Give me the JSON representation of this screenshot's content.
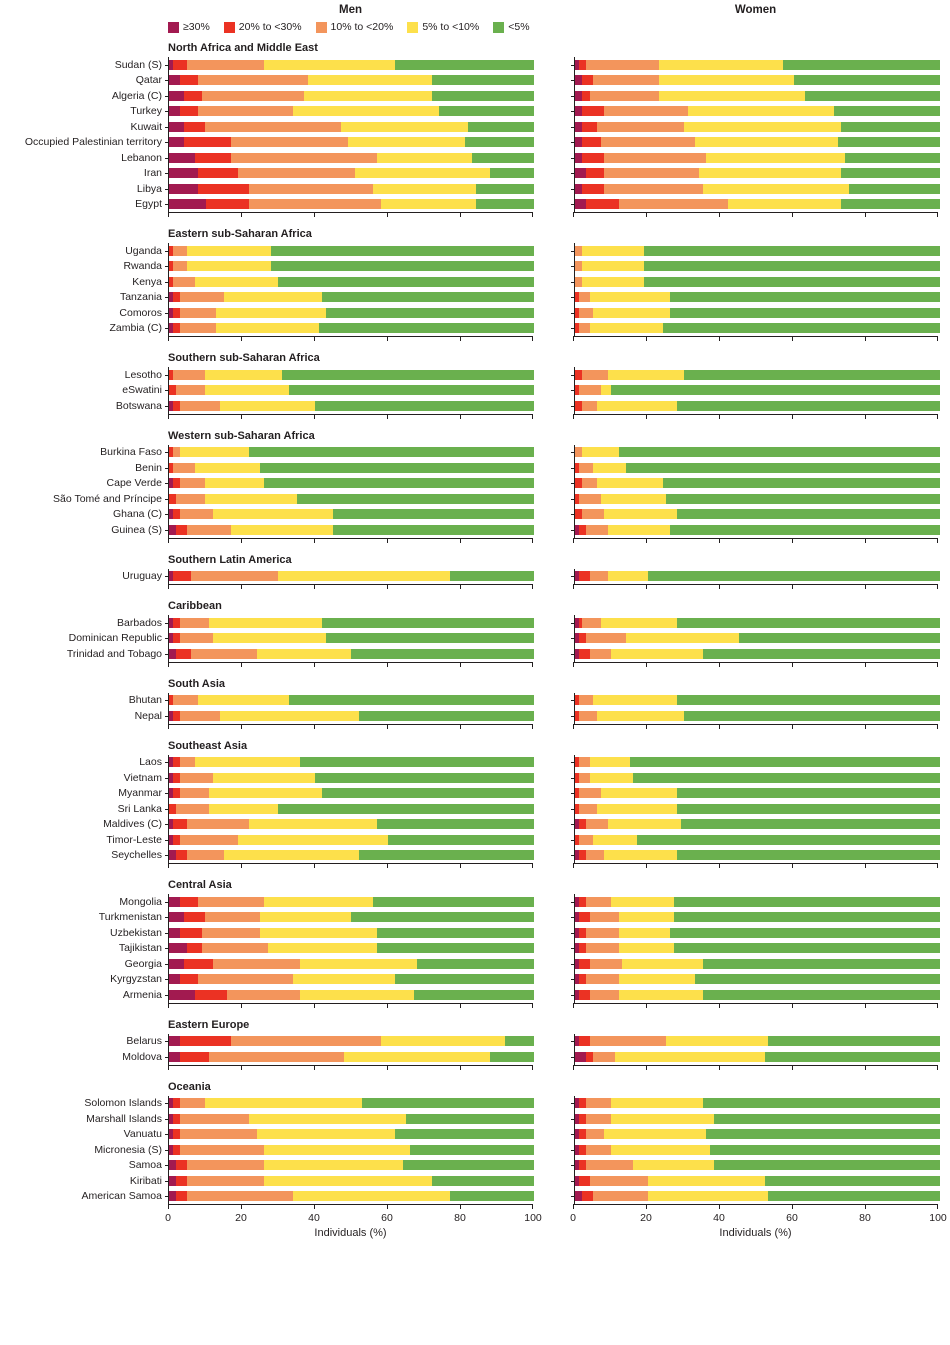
{
  "titles": {
    "men": "Men",
    "women": "Women"
  },
  "legend": [
    {
      "label": "≥30%",
      "color": "#a21a50"
    },
    {
      "label": "20% to <30%",
      "color": "#eb3223"
    },
    {
      "label": "10% to <20%",
      "color": "#f3955c"
    },
    {
      "label": "5% to <10%",
      "color": "#fde04b"
    },
    {
      "label": "<5%",
      "color": "#6ab04e"
    }
  ],
  "chart_data": {
    "type": "bar",
    "stacked": true,
    "orientation": "horizontal",
    "columns": [
      "Men",
      "Women"
    ],
    "series_names": [
      "≥30%",
      "20% to <30%",
      "10% to <20%",
      "5% to <10%",
      "<5%"
    ],
    "xlabel": "Individuals (%)",
    "xlim": [
      0,
      100
    ],
    "x_ticks": [
      0,
      20,
      40,
      60,
      80,
      100
    ],
    "legend_position": "top-left",
    "regions": [
      {
        "name": "North Africa and Middle East",
        "rows": [
          {
            "country": "Sudan (S)",
            "men": [
              1,
              4,
              21,
              36,
              38
            ],
            "women": [
              1,
              2,
              20,
              34,
              43
            ]
          },
          {
            "country": "Qatar",
            "men": [
              3,
              5,
              30,
              34,
              28
            ],
            "women": [
              2,
              3,
              18,
              37,
              40
            ]
          },
          {
            "country": "Algeria (C)",
            "men": [
              4,
              5,
              28,
              35,
              28
            ],
            "women": [
              2,
              2,
              19,
              40,
              37
            ]
          },
          {
            "country": "Turkey",
            "men": [
              3,
              5,
              26,
              40,
              26
            ],
            "women": [
              2,
              6,
              23,
              40,
              29
            ]
          },
          {
            "country": "Kuwait",
            "men": [
              4,
              6,
              37,
              35,
              18
            ],
            "women": [
              2,
              4,
              24,
              43,
              27
            ]
          },
          {
            "country": "Occupied Palestinian territory",
            "men": [
              4,
              13,
              32,
              32,
              19
            ],
            "women": [
              2,
              5,
              26,
              39,
              28
            ]
          },
          {
            "country": "Lebanon",
            "men": [
              7,
              10,
              40,
              26,
              17
            ],
            "women": [
              2,
              6,
              28,
              38,
              26
            ]
          },
          {
            "country": "Iran",
            "men": [
              8,
              11,
              32,
              37,
              12
            ],
            "women": [
              3,
              5,
              26,
              39,
              27
            ]
          },
          {
            "country": "Libya",
            "men": [
              8,
              14,
              34,
              28,
              16
            ],
            "women": [
              2,
              6,
              27,
              40,
              25
            ]
          },
          {
            "country": "Egypt",
            "men": [
              10,
              12,
              36,
              26,
              16
            ],
            "women": [
              3,
              9,
              30,
              31,
              27
            ]
          }
        ]
      },
      {
        "name": "Eastern sub-Saharan Africa",
        "rows": [
          {
            "country": "Uganda",
            "men": [
              0,
              1,
              4,
              23,
              72
            ],
            "women": [
              0,
              0,
              2,
              17,
              81
            ]
          },
          {
            "country": "Rwanda",
            "men": [
              0,
              1,
              4,
              23,
              72
            ],
            "women": [
              0,
              0,
              2,
              17,
              81
            ]
          },
          {
            "country": "Kenya",
            "men": [
              0,
              1,
              6,
              23,
              70
            ],
            "women": [
              0,
              0,
              2,
              17,
              81
            ]
          },
          {
            "country": "Tanzania",
            "men": [
              1,
              2,
              12,
              27,
              58
            ],
            "women": [
              0,
              1,
              3,
              22,
              74
            ]
          },
          {
            "country": "Comoros",
            "men": [
              1,
              2,
              10,
              30,
              57
            ],
            "women": [
              0,
              1,
              4,
              21,
              74
            ]
          },
          {
            "country": "Zambia (C)",
            "men": [
              1,
              2,
              10,
              28,
              59
            ],
            "women": [
              0,
              1,
              3,
              20,
              76
            ]
          }
        ]
      },
      {
        "name": "Southern sub-Saharan Africa",
        "rows": [
          {
            "country": "Lesotho",
            "men": [
              0,
              1,
              9,
              21,
              69
            ],
            "women": [
              0,
              2,
              7,
              21,
              70
            ]
          },
          {
            "country": "eSwatini",
            "men": [
              0,
              2,
              8,
              23,
              67
            ],
            "women": [
              0,
              1,
              6,
              3,
              90
            ]
          },
          {
            "country": "Botswana",
            "men": [
              1,
              2,
              11,
              26,
              60
            ],
            "women": [
              0,
              2,
              4,
              22,
              72
            ]
          }
        ]
      },
      {
        "name": "Western sub-Saharan Africa",
        "rows": [
          {
            "country": "Burkina Faso",
            "men": [
              0,
              1,
              2,
              19,
              78
            ],
            "women": [
              0,
              0,
              2,
              10,
              88
            ]
          },
          {
            "country": "Benin",
            "men": [
              0,
              1,
              6,
              18,
              75
            ],
            "women": [
              0,
              1,
              4,
              9,
              86
            ]
          },
          {
            "country": "Cape Verde",
            "men": [
              1,
              2,
              7,
              16,
              74
            ],
            "women": [
              0,
              2,
              4,
              18,
              76
            ]
          },
          {
            "country": "São Tomé and Príncipe",
            "men": [
              0,
              2,
              8,
              25,
              65
            ],
            "women": [
              0,
              1,
              6,
              18,
              75
            ]
          },
          {
            "country": "Ghana (C)",
            "men": [
              1,
              2,
              9,
              33,
              55
            ],
            "women": [
              0,
              2,
              6,
              20,
              72
            ]
          },
          {
            "country": "Guinea (S)",
            "men": [
              2,
              3,
              12,
              28,
              55
            ],
            "women": [
              1,
              2,
              6,
              17,
              74
            ]
          }
        ]
      },
      {
        "name": "Southern Latin America",
        "rows": [
          {
            "country": "Uruguay",
            "men": [
              1,
              5,
              24,
              47,
              23
            ],
            "women": [
              1,
              3,
              5,
              11,
              80
            ]
          }
        ]
      },
      {
        "name": "Caribbean",
        "rows": [
          {
            "country": "Barbados",
            "men": [
              1,
              2,
              8,
              31,
              58
            ],
            "women": [
              1,
              1,
              5,
              21,
              72
            ]
          },
          {
            "country": "Dominican Republic",
            "men": [
              1,
              2,
              9,
              31,
              57
            ],
            "women": [
              1,
              2,
              11,
              31,
              55
            ]
          },
          {
            "country": "Trinidad and Tobago",
            "men": [
              2,
              4,
              18,
              26,
              50
            ],
            "women": [
              1,
              3,
              6,
              25,
              65
            ]
          }
        ]
      },
      {
        "name": "South Asia",
        "rows": [
          {
            "country": "Bhutan",
            "men": [
              0,
              1,
              7,
              25,
              67
            ],
            "women": [
              0,
              1,
              4,
              23,
              72
            ]
          },
          {
            "country": "Nepal",
            "men": [
              1,
              2,
              11,
              38,
              48
            ],
            "women": [
              0,
              1,
              5,
              24,
              70
            ]
          }
        ]
      },
      {
        "name": "Southeast Asia",
        "rows": [
          {
            "country": "Laos",
            "men": [
              1,
              2,
              4,
              29,
              64
            ],
            "women": [
              0,
              1,
              3,
              11,
              85
            ]
          },
          {
            "country": "Vietnam",
            "men": [
              1,
              2,
              9,
              28,
              60
            ],
            "women": [
              0,
              1,
              3,
              12,
              84
            ]
          },
          {
            "country": "Myanmar",
            "men": [
              1,
              2,
              8,
              31,
              58
            ],
            "women": [
              0,
              1,
              6,
              21,
              72
            ]
          },
          {
            "country": "Sri Lanka",
            "men": [
              0,
              2,
              9,
              19,
              70
            ],
            "women": [
              0,
              1,
              5,
              22,
              72
            ]
          },
          {
            "country": "Maldives (C)",
            "men": [
              1,
              4,
              17,
              35,
              43
            ],
            "women": [
              1,
              2,
              6,
              20,
              71
            ]
          },
          {
            "country": "Timor-Leste",
            "men": [
              1,
              2,
              16,
              41,
              40
            ],
            "women": [
              0,
              1,
              4,
              12,
              83
            ]
          },
          {
            "country": "Seychelles",
            "men": [
              2,
              3,
              10,
              37,
              48
            ],
            "women": [
              1,
              2,
              5,
              20,
              72
            ]
          }
        ]
      },
      {
        "name": "Central Asia",
        "rows": [
          {
            "country": "Mongolia",
            "men": [
              3,
              5,
              18,
              30,
              44
            ],
            "women": [
              1,
              2,
              7,
              17,
              73
            ]
          },
          {
            "country": "Turkmenistan",
            "men": [
              4,
              6,
              15,
              25,
              50
            ],
            "women": [
              1,
              3,
              8,
              15,
              73
            ]
          },
          {
            "country": "Uzbekistan",
            "men": [
              3,
              6,
              16,
              32,
              43
            ],
            "women": [
              1,
              2,
              9,
              14,
              74
            ]
          },
          {
            "country": "Tajikistan",
            "men": [
              5,
              4,
              18,
              30,
              43
            ],
            "women": [
              1,
              2,
              9,
              15,
              73
            ]
          },
          {
            "country": "Georgia",
            "men": [
              4,
              8,
              24,
              32,
              32
            ],
            "women": [
              1,
              3,
              9,
              22,
              65
            ]
          },
          {
            "country": "Kyrgyzstan",
            "men": [
              3,
              5,
              26,
              28,
              38
            ],
            "women": [
              1,
              2,
              9,
              21,
              67
            ]
          },
          {
            "country": "Armenia",
            "men": [
              7,
              9,
              20,
              31,
              33
            ],
            "women": [
              1,
              3,
              8,
              23,
              65
            ]
          }
        ]
      },
      {
        "name": "Eastern Europe",
        "rows": [
          {
            "country": "Belarus",
            "men": [
              3,
              14,
              41,
              34,
              8
            ],
            "women": [
              1,
              3,
              21,
              28,
              47
            ]
          },
          {
            "country": "Moldova",
            "men": [
              3,
              8,
              37,
              40,
              12
            ],
            "women": [
              3,
              2,
              6,
              41,
              48
            ]
          }
        ]
      },
      {
        "name": "Oceania",
        "rows": [
          {
            "country": "Solomon Islands",
            "men": [
              1,
              2,
              7,
              43,
              47
            ],
            "women": [
              1,
              2,
              7,
              25,
              65
            ]
          },
          {
            "country": "Marshall Islands",
            "men": [
              1,
              2,
              19,
              43,
              35
            ],
            "women": [
              1,
              2,
              7,
              28,
              62
            ]
          },
          {
            "country": "Vanuatu",
            "men": [
              1,
              2,
              21,
              38,
              38
            ],
            "women": [
              1,
              2,
              5,
              28,
              64
            ]
          },
          {
            "country": "Micronesia (S)",
            "men": [
              1,
              2,
              23,
              40,
              34
            ],
            "women": [
              1,
              2,
              7,
              27,
              63
            ]
          },
          {
            "country": "Samoa",
            "men": [
              2,
              3,
              21,
              38,
              36
            ],
            "women": [
              1,
              2,
              13,
              22,
              62
            ]
          },
          {
            "country": "Kiribati",
            "men": [
              2,
              3,
              21,
              46,
              28
            ],
            "women": [
              1,
              3,
              16,
              32,
              48
            ]
          },
          {
            "country": "American Samoa",
            "men": [
              2,
              3,
              29,
              43,
              23
            ],
            "women": [
              2,
              3,
              15,
              33,
              47
            ]
          }
        ]
      }
    ]
  }
}
